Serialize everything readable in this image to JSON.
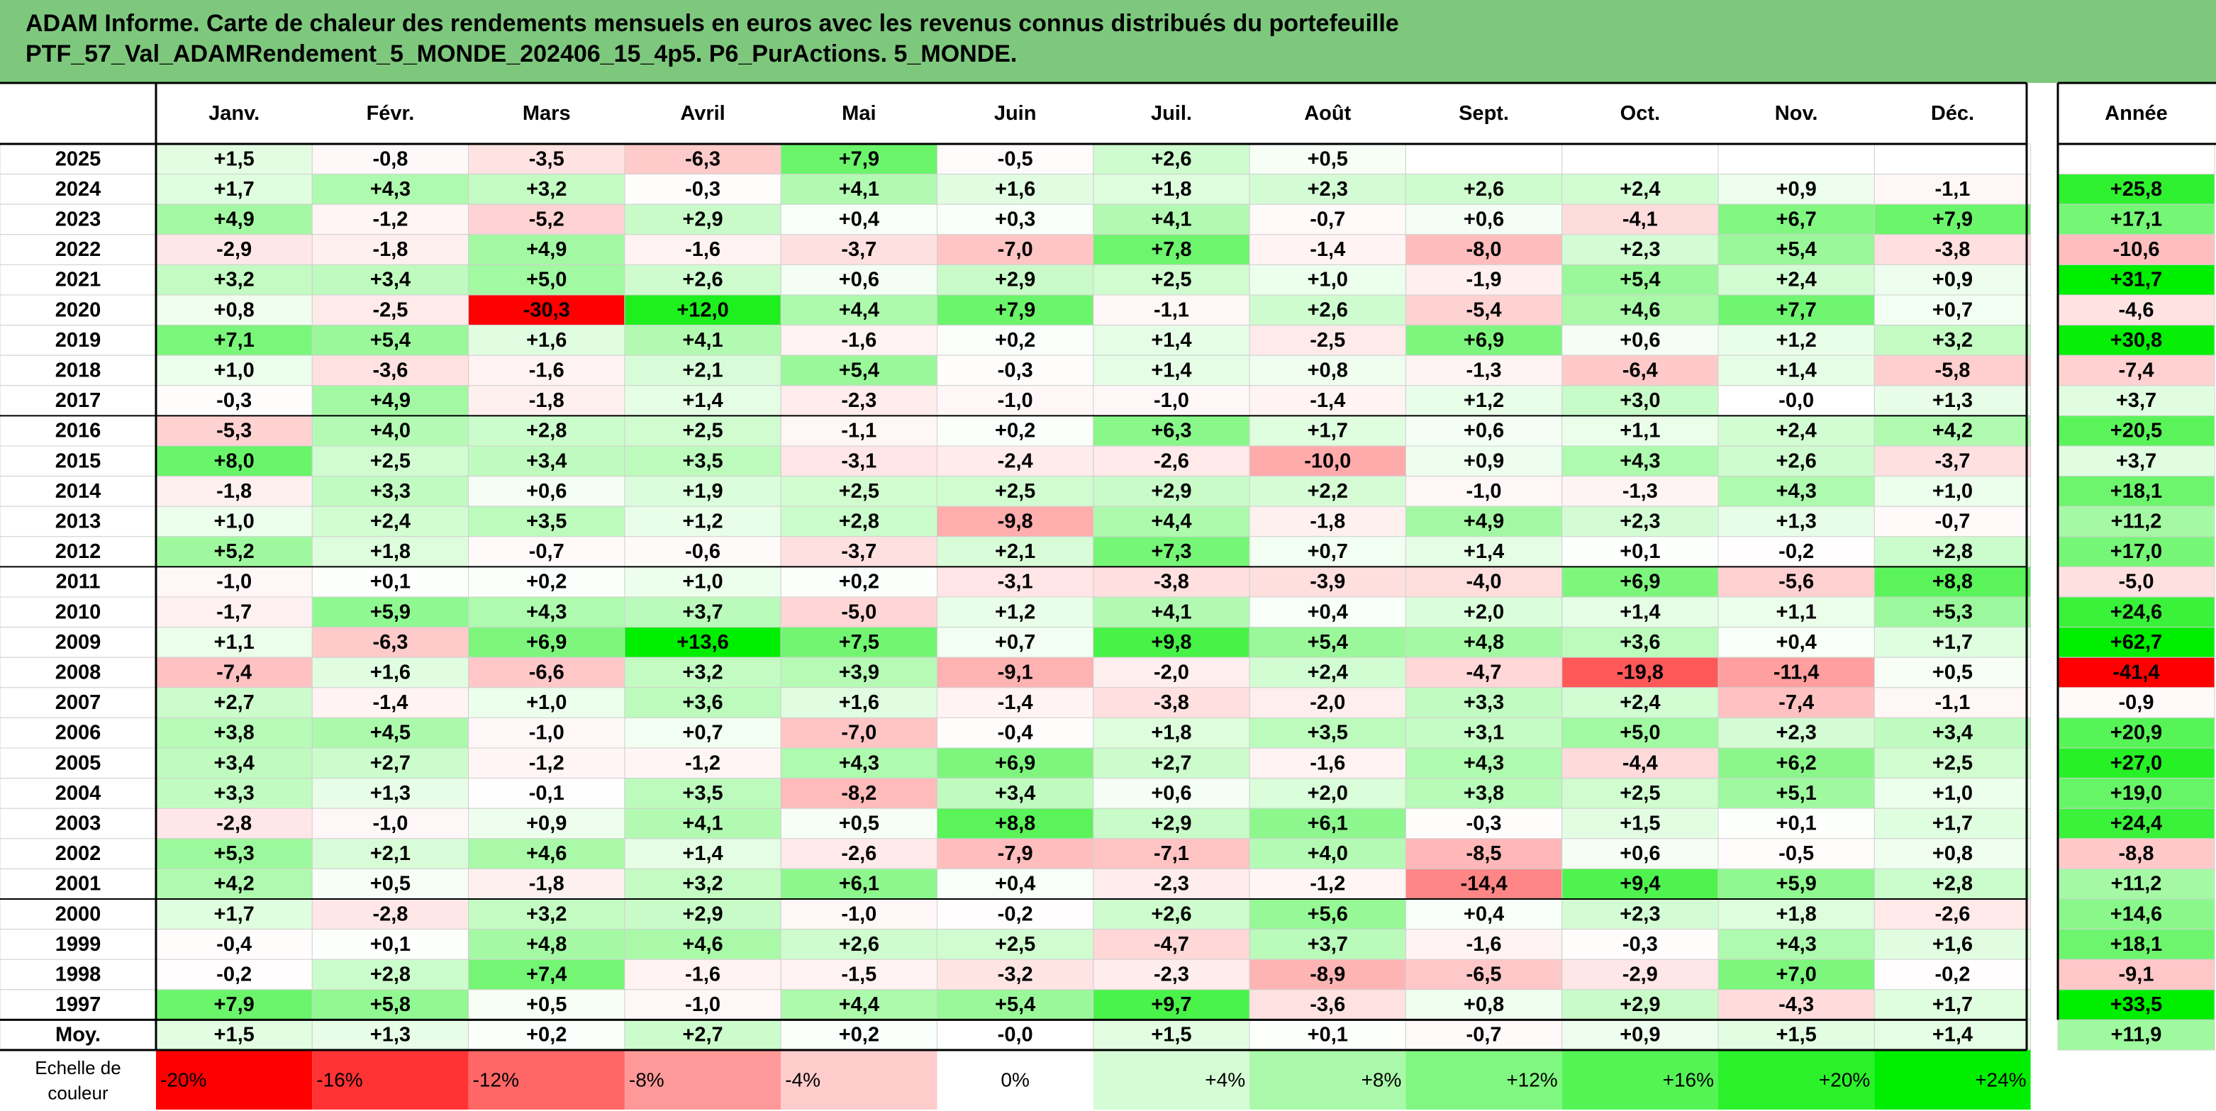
{
  "header": {
    "title_line1": "ADAM Informe. Carte de chaleur des rendements mensuels en euros avec les revenus connus distribués du portefeuille",
    "title_line2": "PTF_57_Val_ADAMRendement_5_MONDE_202406_15_4p5. P6_PurActions. 5_MONDE."
  },
  "chart_data": {
    "type": "heatmap",
    "title": "ADAM Informe. Carte de chaleur des rendements mensuels en euros avec les revenus connus distribués du portefeuille PTF_57_Val_ADAMRendement_5_MONDE_202406_15_4p5. P6_PurActions. 5_MONDE.",
    "months": [
      "Janv.",
      "Févr.",
      "Mars",
      "Avril",
      "Mai",
      "Juin",
      "Juil.",
      "Août",
      "Sept.",
      "Oct.",
      "Nov.",
      "Déc."
    ],
    "year_label": "Année",
    "rows": [
      {
        "year": "2025",
        "values": [
          "+1,5",
          "-0,8",
          "-3,5",
          "-6,3",
          "+7,9",
          "-0,5",
          "+2,6",
          "+0,5",
          "",
          "",
          "",
          ""
        ],
        "annual": ""
      },
      {
        "year": "2024",
        "values": [
          "+1,7",
          "+4,3",
          "+3,2",
          "-0,3",
          "+4,1",
          "+1,6",
          "+1,8",
          "+2,3",
          "+2,6",
          "+2,4",
          "+0,9",
          "-1,1"
        ],
        "annual": "+25,8"
      },
      {
        "year": "2023",
        "values": [
          "+4,9",
          "-1,2",
          "-5,2",
          "+2,9",
          "+0,4",
          "+0,3",
          "+4,1",
          "-0,7",
          "+0,6",
          "-4,1",
          "+6,7",
          "+7,9"
        ],
        "annual": "+17,1"
      },
      {
        "year": "2022",
        "values": [
          "-2,9",
          "-1,8",
          "+4,9",
          "-1,6",
          "-3,7",
          "-7,0",
          "+7,8",
          "-1,4",
          "-8,0",
          "+2,3",
          "+5,4",
          "-3,8"
        ],
        "annual": "-10,6"
      },
      {
        "year": "2021",
        "values": [
          "+3,2",
          "+3,4",
          "+5,0",
          "+2,6",
          "+0,6",
          "+2,9",
          "+2,5",
          "+1,0",
          "-1,9",
          "+5,4",
          "+2,4",
          "+0,9"
        ],
        "annual": "+31,7"
      },
      {
        "year": "2020",
        "values": [
          "+0,8",
          "-2,5",
          "-30,3",
          "+12,0",
          "+4,4",
          "+7,9",
          "-1,1",
          "+2,6",
          "-5,4",
          "+4,6",
          "+7,7",
          "+0,7"
        ],
        "annual": "-4,6"
      },
      {
        "year": "2019",
        "values": [
          "+7,1",
          "+5,4",
          "+1,6",
          "+4,1",
          "-1,6",
          "+0,2",
          "+1,4",
          "-2,5",
          "+6,9",
          "+0,6",
          "+1,2",
          "+3,2"
        ],
        "annual": "+30,8"
      },
      {
        "year": "2018",
        "values": [
          "+1,0",
          "-3,6",
          "-1,6",
          "+2,1",
          "+5,4",
          "-0,3",
          "+1,4",
          "+0,8",
          "-1,3",
          "-6,4",
          "+1,4",
          "-5,8"
        ],
        "annual": "-7,4"
      },
      {
        "year": "2017",
        "values": [
          "-0,3",
          "+4,9",
          "-1,8",
          "+1,4",
          "-2,3",
          "-1,0",
          "-1,0",
          "-1,4",
          "+1,2",
          "+3,0",
          "-0,0",
          "+1,3"
        ],
        "annual": "+3,7"
      },
      {
        "year": "2016",
        "values": [
          "-5,3",
          "+4,0",
          "+2,8",
          "+2,5",
          "-1,1",
          "+0,2",
          "+6,3",
          "+1,7",
          "+0,6",
          "+1,1",
          "+2,4",
          "+4,2"
        ],
        "annual": "+20,5"
      },
      {
        "year": "2015",
        "values": [
          "+8,0",
          "+2,5",
          "+3,4",
          "+3,5",
          "-3,1",
          "-2,4",
          "-2,6",
          "-10,0",
          "+0,9",
          "+4,3",
          "+2,6",
          "-3,7"
        ],
        "annual": "+3,7"
      },
      {
        "year": "2014",
        "values": [
          "-1,8",
          "+3,3",
          "+0,6",
          "+1,9",
          "+2,5",
          "+2,5",
          "+2,9",
          "+2,2",
          "-1,0",
          "-1,3",
          "+4,3",
          "+1,0"
        ],
        "annual": "+18,1"
      },
      {
        "year": "2013",
        "values": [
          "+1,0",
          "+2,4",
          "+3,5",
          "+1,2",
          "+2,8",
          "-9,8",
          "+4,4",
          "-1,8",
          "+4,9",
          "+2,3",
          "+1,3",
          "-0,7"
        ],
        "annual": "+11,2"
      },
      {
        "year": "2012",
        "values": [
          "+5,2",
          "+1,8",
          "-0,7",
          "-0,6",
          "-3,7",
          "+2,1",
          "+7,3",
          "+0,7",
          "+1,4",
          "+0,1",
          "-0,2",
          "+2,8"
        ],
        "annual": "+17,0"
      },
      {
        "year": "2011",
        "values": [
          "-1,0",
          "+0,1",
          "+0,2",
          "+1,0",
          "+0,2",
          "-3,1",
          "-3,8",
          "-3,9",
          "-4,0",
          "+6,9",
          "-5,6",
          "+8,8"
        ],
        "annual": "-5,0"
      },
      {
        "year": "2010",
        "values": [
          "-1,7",
          "+5,9",
          "+4,3",
          "+3,7",
          "-5,0",
          "+1,2",
          "+4,1",
          "+0,4",
          "+2,0",
          "+1,4",
          "+1,1",
          "+5,3"
        ],
        "annual": "+24,6"
      },
      {
        "year": "2009",
        "values": [
          "+1,1",
          "-6,3",
          "+6,9",
          "+13,6",
          "+7,5",
          "+0,7",
          "+9,8",
          "+5,4",
          "+4,8",
          "+3,6",
          "+0,4",
          "+1,7"
        ],
        "annual": "+62,7"
      },
      {
        "year": "2008",
        "values": [
          "-7,4",
          "+1,6",
          "-6,6",
          "+3,2",
          "+3,9",
          "-9,1",
          "-2,0",
          "+2,4",
          "-4,7",
          "-19,8",
          "-11,4",
          "+0,5"
        ],
        "annual": "-41,4"
      },
      {
        "year": "2007",
        "values": [
          "+2,7",
          "-1,4",
          "+1,0",
          "+3,6",
          "+1,6",
          "-1,4",
          "-3,8",
          "-2,0",
          "+3,3",
          "+2,4",
          "-7,4",
          "-1,1"
        ],
        "annual": "-0,9"
      },
      {
        "year": "2006",
        "values": [
          "+3,8",
          "+4,5",
          "-1,0",
          "+0,7",
          "-7,0",
          "-0,4",
          "+1,8",
          "+3,5",
          "+3,1",
          "+5,0",
          "+2,3",
          "+3,4"
        ],
        "annual": "+20,9"
      },
      {
        "year": "2005",
        "values": [
          "+3,4",
          "+2,7",
          "-1,2",
          "-1,2",
          "+4,3",
          "+6,9",
          "+2,7",
          "-1,6",
          "+4,3",
          "-4,4",
          "+6,2",
          "+2,5"
        ],
        "annual": "+27,0"
      },
      {
        "year": "2004",
        "values": [
          "+3,3",
          "+1,3",
          "-0,1",
          "+3,5",
          "-8,2",
          "+3,4",
          "+0,6",
          "+2,0",
          "+3,8",
          "+2,5",
          "+5,1",
          "+1,0"
        ],
        "annual": "+19,0"
      },
      {
        "year": "2003",
        "values": [
          "-2,8",
          "-1,0",
          "+0,9",
          "+4,1",
          "+0,5",
          "+8,8",
          "+2,9",
          "+6,1",
          "-0,3",
          "+1,5",
          "+0,1",
          "+1,7"
        ],
        "annual": "+24,4"
      },
      {
        "year": "2002",
        "values": [
          "+5,3",
          "+2,1",
          "+4,6",
          "+1,4",
          "-2,6",
          "-7,9",
          "-7,1",
          "+4,0",
          "-8,5",
          "+0,6",
          "-0,5",
          "+0,8"
        ],
        "annual": "-8,8"
      },
      {
        "year": "2001",
        "values": [
          "+4,2",
          "+0,5",
          "-1,8",
          "+3,2",
          "+6,1",
          "+0,4",
          "-2,3",
          "-1,2",
          "-14,4",
          "+9,4",
          "+5,9",
          "+2,8"
        ],
        "annual": "+11,2"
      },
      {
        "year": "2000",
        "values": [
          "+1,7",
          "-2,8",
          "+3,2",
          "+2,9",
          "-1,0",
          "-0,2",
          "+2,6",
          "+5,6",
          "+0,4",
          "+2,3",
          "+1,8",
          "-2,6"
        ],
        "annual": "+14,6"
      },
      {
        "year": "1999",
        "values": [
          "-0,4",
          "+0,1",
          "+4,8",
          "+4,6",
          "+2,6",
          "+2,5",
          "-4,7",
          "+3,7",
          "-1,6",
          "-0,3",
          "+4,3",
          "+1,6"
        ],
        "annual": "+18,1"
      },
      {
        "year": "1998",
        "values": [
          "-0,2",
          "+2,8",
          "+7,4",
          "-1,6",
          "-1,5",
          "-3,2",
          "-2,3",
          "-8,9",
          "-6,5",
          "-2,9",
          "+7,0",
          "-0,2"
        ],
        "annual": "-9,1"
      },
      {
        "year": "1997",
        "values": [
          "+7,9",
          "+5,8",
          "+0,5",
          "-1,0",
          "+4,4",
          "+5,4",
          "+9,7",
          "-3,6",
          "+0,8",
          "+2,9",
          "-4,3",
          "+1,7"
        ],
        "annual": "+33,5"
      }
    ],
    "average": {
      "label": "Moy.",
      "values": [
        "+1,5",
        "+1,3",
        "+0,2",
        "+2,7",
        "+0,2",
        "-0,0",
        "+1,5",
        "+0,1",
        "-0,7",
        "+0,9",
        "+1,5",
        "+1,4"
      ],
      "annual": "+11,9"
    },
    "scale": {
      "label_line1": "Echelle de",
      "label_line2": "couleur",
      "steps": [
        {
          "label": "-20%",
          "value": -20
        },
        {
          "label": "-16%",
          "value": -16
        },
        {
          "label": "-12%",
          "value": -12
        },
        {
          "label": "-8%",
          "value": -8
        },
        {
          "label": "-4%",
          "value": -4
        },
        {
          "label": "0%",
          "value": 0
        },
        {
          "label": "+4%",
          "value": 4
        },
        {
          "label": "+8%",
          "value": 8
        },
        {
          "label": "+12%",
          "value": 12
        },
        {
          "label": "+16%",
          "value": 16
        },
        {
          "label": "+20%",
          "value": 20
        },
        {
          "label": "+24%",
          "value": 24
        }
      ]
    }
  }
}
